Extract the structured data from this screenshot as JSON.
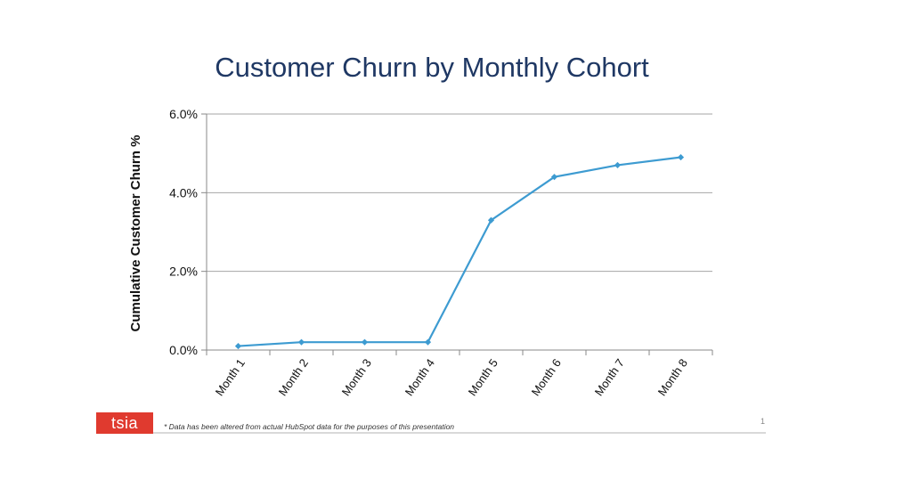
{
  "slide": {
    "footnote": "* Data has been altered from actual HubSpot data for the purposes of this presentation",
    "page_number": "1",
    "logo_text": "tsia",
    "logo_color": "#e03a2f"
  },
  "chart_data": {
    "type": "line",
    "title": "Customer Churn by Monthly Cohort",
    "xlabel": "",
    "ylabel": "Cumulative Customer Churn %",
    "categories": [
      "Month 1",
      "Month 2",
      "Month 3",
      "Month 4",
      "Month 5",
      "Month 6",
      "Month 7",
      "Month 8"
    ],
    "series": [
      {
        "values": [
          0.1,
          0.2,
          0.2,
          0.2,
          3.3,
          4.4,
          4.7,
          4.9
        ],
        "color": "#3d9bd1"
      }
    ],
    "ylim": [
      0,
      6
    ],
    "yticks": [
      "0.0%",
      "2.0%",
      "4.0%",
      "6.0%"
    ],
    "ytick_values": [
      0,
      2,
      4,
      6
    ],
    "grid": true,
    "legend": "none"
  }
}
